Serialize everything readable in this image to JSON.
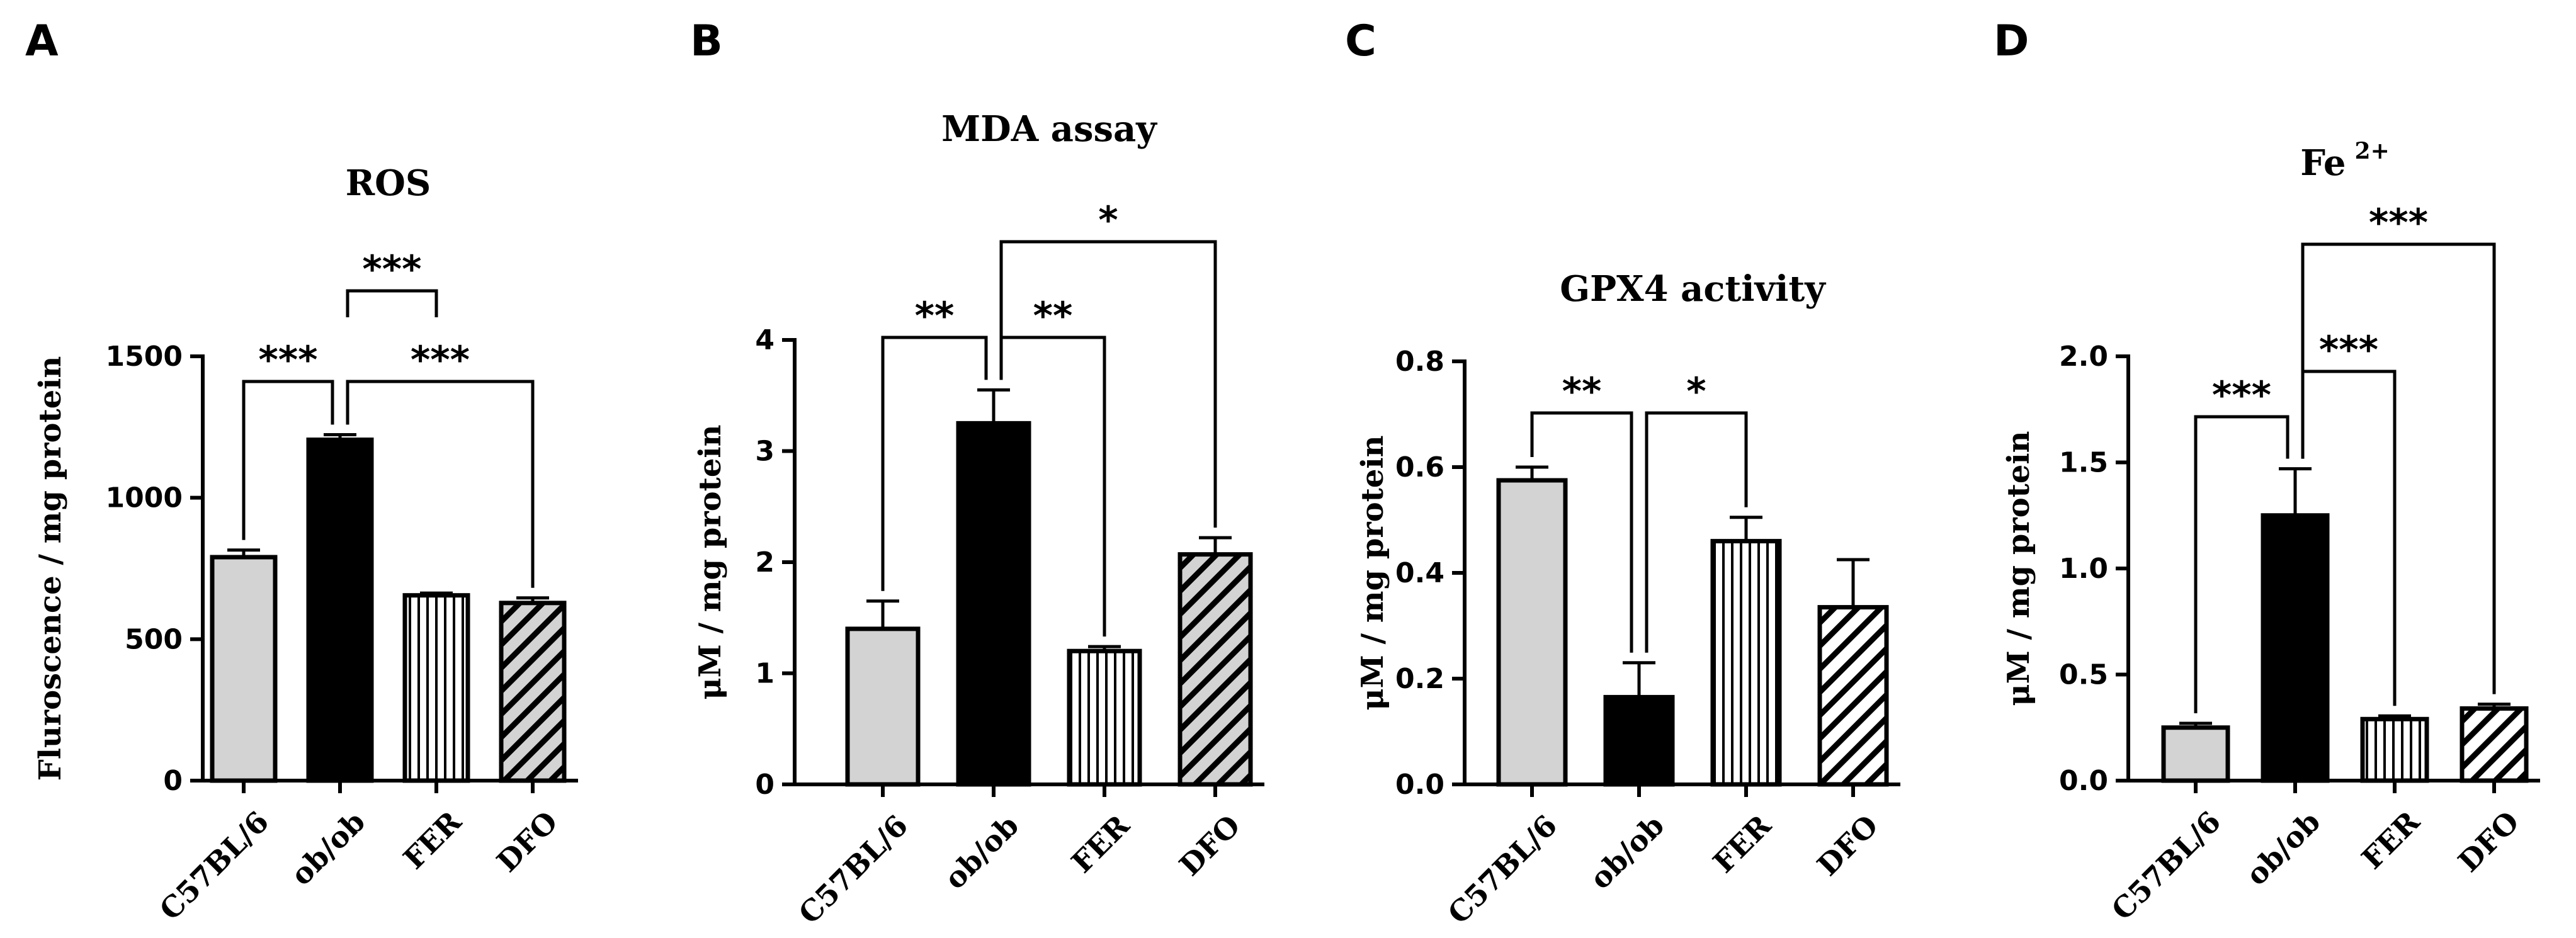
{
  "chart_data": [
    {
      "type": "bar",
      "panel": "A",
      "title": "ROS",
      "title_sup": "",
      "ylabel": "Fluroscence / mg protein",
      "ylim": [
        0,
        1500
      ],
      "yticks": [
        0,
        500,
        1000,
        1500
      ],
      "yticklabels": [
        "0",
        "500",
        "1000",
        "1500"
      ],
      "categories": [
        "C57BL/6",
        "ob/ob",
        "FER",
        "DFO"
      ],
      "values": [
        790,
        1205,
        655,
        628
      ],
      "errors": [
        25,
        18,
        8,
        18
      ],
      "fills": [
        "gray",
        "black",
        "vstripe",
        "diag-gray"
      ],
      "significance": [
        {
          "from": 0,
          "to": 1,
          "label": "***"
        },
        {
          "from": 1,
          "to": 2,
          "label": "***"
        },
        {
          "from": 1,
          "to": 3,
          "label": "***"
        }
      ]
    },
    {
      "type": "bar",
      "panel": "B",
      "title": "MDA assay",
      "title_sup": "",
      "ylabel": "μM / mg protein",
      "ylim": [
        0,
        4
      ],
      "yticks": [
        0,
        1,
        2,
        3,
        4
      ],
      "yticklabels": [
        "0",
        "1",
        "2",
        "3",
        "4"
      ],
      "categories": [
        "C57BL/6",
        "ob/ob",
        "FER",
        "DFO"
      ],
      "values": [
        1.4,
        3.25,
        1.2,
        2.07
      ],
      "errors": [
        0.25,
        0.3,
        0.04,
        0.15
      ],
      "fills": [
        "gray",
        "black",
        "vstripe",
        "diag-gray"
      ],
      "significance": [
        {
          "from": 0,
          "to": 1,
          "label": "**"
        },
        {
          "from": 1,
          "to": 2,
          "label": "**"
        },
        {
          "from": 1,
          "to": 3,
          "label": "*"
        }
      ]
    },
    {
      "type": "bar",
      "panel": "C",
      "title": "GPX4 activity",
      "title_sup": "",
      "ylabel": "μM / mg protein",
      "ylim": [
        0,
        0.8
      ],
      "yticks": [
        0,
        0.2,
        0.4,
        0.6,
        0.8
      ],
      "yticklabels": [
        "0.0",
        "0.2",
        "0.4",
        "0.6",
        "0.8"
      ],
      "categories": [
        "C57BL/6",
        "ob/ob",
        "FER",
        "DFO"
      ],
      "values": [
        0.575,
        0.165,
        0.46,
        0.335
      ],
      "errors": [
        0.025,
        0.065,
        0.045,
        0.09
      ],
      "fills": [
        "gray",
        "black",
        "vstripe",
        "diag-white"
      ],
      "significance": [
        {
          "from": 0,
          "to": 1,
          "label": "**"
        },
        {
          "from": 1,
          "to": 2,
          "label": "*"
        }
      ]
    },
    {
      "type": "bar",
      "panel": "D",
      "title": "Fe",
      "title_sup": "2+",
      "ylabel": "μM / mg protein",
      "ylim": [
        0,
        2
      ],
      "yticks": [
        0,
        0.5,
        1,
        1.5,
        2
      ],
      "yticklabels": [
        "0.0",
        "0.5",
        "1.0",
        "1.5",
        "2.0"
      ],
      "categories": [
        "C57BL/6",
        "ob/ob",
        "FER",
        "DFO"
      ],
      "values": [
        0.25,
        1.25,
        0.29,
        0.34
      ],
      "errors": [
        0.02,
        0.22,
        0.015,
        0.02
      ],
      "fills": [
        "gray",
        "black",
        "vstripe",
        "diag-white"
      ],
      "significance": [
        {
          "from": 0,
          "to": 1,
          "label": "***"
        },
        {
          "from": 1,
          "to": 2,
          "label": "***"
        },
        {
          "from": 1,
          "to": 3,
          "label": "***"
        }
      ]
    }
  ]
}
